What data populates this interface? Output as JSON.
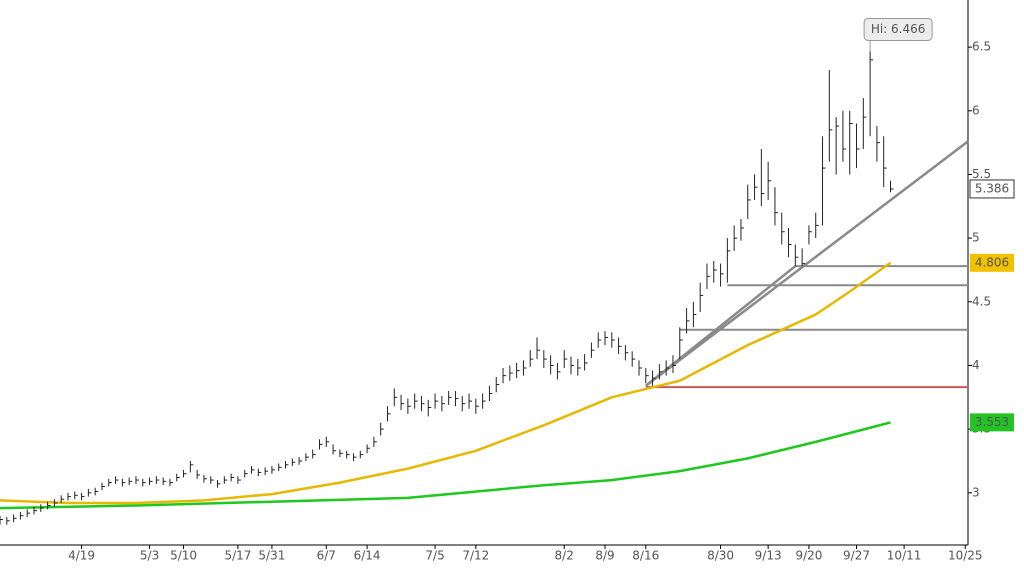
{
  "chart_data": {
    "type": "ohlc",
    "ylim": [
      2.59,
      6.87
    ],
    "yticks": [
      3,
      3.5,
      4,
      4.5,
      5,
      5.5,
      6,
      6.5
    ],
    "xlim": [
      0,
      142.4
    ],
    "xticks": [
      {
        "value": 12,
        "label": "4/19"
      },
      {
        "value": 22,
        "label": "5/3"
      },
      {
        "value": 27,
        "label": "5/10"
      },
      {
        "value": 35,
        "label": "5/17"
      },
      {
        "value": 40,
        "label": "5/31"
      },
      {
        "value": 48,
        "label": "6/7"
      },
      {
        "value": 54,
        "label": "6/14"
      },
      {
        "value": 64,
        "label": "7/5"
      },
      {
        "value": 70,
        "label": "7/12"
      },
      {
        "value": 83,
        "label": "8/2"
      },
      {
        "value": 89,
        "label": "8/9"
      },
      {
        "value": 95,
        "label": "8/16"
      },
      {
        "value": 106,
        "label": "8/30"
      },
      {
        "value": 113,
        "label": "9/13"
      },
      {
        "value": 119,
        "label": "9/20"
      },
      {
        "value": 126,
        "label": "9/27"
      },
      {
        "value": 133,
        "label": "10/11"
      },
      {
        "value": 142,
        "label": "10/25"
      }
    ],
    "bars": {
      "color": "#222222",
      "high": [
        2.82,
        2.81,
        2.83,
        2.85,
        2.87,
        2.89,
        2.91,
        2.93,
        2.95,
        2.98,
        3.0,
        3.01,
        3.0,
        3.03,
        3.04,
        3.08,
        3.11,
        3.13,
        3.11,
        3.12,
        3.13,
        3.11,
        3.12,
        3.13,
        3.12,
        3.11,
        3.15,
        3.18,
        3.25,
        3.18,
        3.14,
        3.13,
        3.1,
        3.13,
        3.15,
        3.13,
        3.18,
        3.21,
        3.19,
        3.2,
        3.21,
        3.23,
        3.25,
        3.27,
        3.28,
        3.31,
        3.34,
        3.42,
        3.44,
        3.38,
        3.34,
        3.33,
        3.31,
        3.33,
        3.38,
        3.44,
        3.55,
        3.68,
        3.82,
        3.77,
        3.74,
        3.78,
        3.76,
        3.73,
        3.78,
        3.76,
        3.8,
        3.8,
        3.76,
        3.78,
        3.74,
        3.78,
        3.84,
        3.91,
        3.98,
        4.0,
        4.02,
        4.04,
        4.12,
        4.22,
        4.12,
        4.08,
        4.02,
        4.12,
        4.07,
        4.05,
        4.09,
        4.18,
        4.26,
        4.27,
        4.26,
        4.22,
        4.16,
        4.11,
        4.04,
        3.98,
        3.96,
        4.01,
        4.04,
        4.08,
        4.3,
        4.45,
        4.5,
        4.65,
        4.8,
        4.82,
        4.8,
        5.0,
        5.1,
        5.15,
        5.42,
        5.5,
        5.7,
        5.6,
        5.4,
        5.2,
        5.08,
        4.95,
        4.92,
        5.1,
        5.2,
        5.8,
        6.32,
        5.95,
        6.0,
        6.0,
        5.9,
        6.1,
        6.466,
        5.88,
        5.8,
        5.45
      ],
      "low": [
        2.75,
        2.75,
        2.77,
        2.79,
        2.81,
        2.83,
        2.85,
        2.87,
        2.89,
        2.92,
        2.94,
        2.95,
        2.94,
        2.97,
        2.98,
        3.02,
        3.05,
        3.07,
        3.05,
        3.06,
        3.07,
        3.05,
        3.06,
        3.07,
        3.06,
        3.05,
        3.09,
        3.12,
        3.16,
        3.11,
        3.08,
        3.07,
        3.04,
        3.07,
        3.09,
        3.07,
        3.12,
        3.15,
        3.13,
        3.14,
        3.15,
        3.17,
        3.19,
        3.21,
        3.22,
        3.25,
        3.27,
        3.34,
        3.36,
        3.3,
        3.28,
        3.27,
        3.25,
        3.27,
        3.31,
        3.36,
        3.45,
        3.56,
        3.68,
        3.65,
        3.62,
        3.66,
        3.64,
        3.6,
        3.66,
        3.64,
        3.69,
        3.68,
        3.64,
        3.66,
        3.62,
        3.66,
        3.72,
        3.79,
        3.86,
        3.88,
        3.9,
        3.92,
        3.99,
        4.05,
        3.98,
        3.93,
        3.89,
        3.98,
        3.93,
        3.92,
        3.96,
        4.06,
        4.14,
        4.16,
        4.14,
        4.09,
        4.04,
        3.99,
        3.92,
        3.86,
        3.84,
        3.89,
        3.92,
        3.94,
        4.05,
        4.25,
        4.3,
        4.42,
        4.6,
        4.65,
        4.62,
        4.65,
        4.9,
        4.98,
        5.15,
        5.3,
        5.25,
        5.3,
        5.1,
        4.95,
        4.85,
        4.78,
        4.78,
        4.95,
        5.0,
        5.1,
        5.6,
        5.5,
        5.6,
        5.5,
        5.55,
        5.7,
        5.8,
        5.6,
        5.4,
        5.36
      ],
      "close": [
        2.79,
        2.78,
        2.8,
        2.82,
        2.84,
        2.86,
        2.88,
        2.9,
        2.92,
        2.95,
        2.97,
        2.98,
        2.97,
        3.0,
        3.01,
        3.05,
        3.08,
        3.1,
        3.08,
        3.09,
        3.1,
        3.08,
        3.09,
        3.1,
        3.09,
        3.08,
        3.12,
        3.15,
        3.22,
        3.14,
        3.11,
        3.1,
        3.07,
        3.1,
        3.12,
        3.1,
        3.15,
        3.18,
        3.16,
        3.17,
        3.18,
        3.2,
        3.22,
        3.24,
        3.25,
        3.28,
        3.3,
        3.38,
        3.4,
        3.33,
        3.31,
        3.3,
        3.28,
        3.3,
        3.35,
        3.4,
        3.5,
        3.62,
        3.75,
        3.7,
        3.68,
        3.72,
        3.7,
        3.67,
        3.72,
        3.7,
        3.75,
        3.74,
        3.7,
        3.72,
        3.68,
        3.72,
        3.78,
        3.85,
        3.92,
        3.94,
        3.96,
        3.98,
        4.05,
        4.12,
        4.05,
        4.0,
        3.95,
        4.05,
        4.0,
        3.98,
        4.02,
        4.12,
        4.2,
        4.22,
        4.2,
        4.15,
        4.1,
        4.05,
        3.98,
        3.92,
        3.9,
        3.95,
        3.98,
        4.0,
        4.2,
        4.35,
        4.4,
        4.55,
        4.7,
        4.75,
        4.72,
        4.9,
        5.0,
        5.08,
        5.3,
        5.4,
        5.35,
        5.45,
        5.2,
        5.05,
        4.95,
        4.85,
        4.8,
        5.05,
        5.1,
        5.55,
        5.85,
        5.88,
        5.7,
        5.9,
        5.7,
        5.95,
        6.4,
        5.75,
        5.55,
        5.386
      ]
    },
    "high_label": "Hi: 6.466",
    "moving_averages": [
      {
        "color": "#e6b800",
        "label_bg": "#f2c200",
        "x": [
          0,
          10,
          20,
          30,
          40,
          50,
          60,
          70,
          80,
          90,
          100,
          110,
          120,
          125,
          131
        ],
        "values": [
          2.94,
          2.92,
          2.92,
          2.94,
          2.99,
          3.08,
          3.19,
          3.33,
          3.53,
          3.75,
          3.88,
          4.16,
          4.4,
          4.58,
          4.806
        ]
      },
      {
        "color": "#1ec81e",
        "label_bg": "#22c322",
        "x": [
          0,
          20,
          40,
          60,
          80,
          90,
          100,
          110,
          120,
          131
        ],
        "values": [
          2.88,
          2.9,
          2.93,
          2.96,
          3.06,
          3.1,
          3.17,
          3.27,
          3.4,
          3.553
        ]
      }
    ],
    "levels": [
      {
        "value": 4.78,
        "from": 117,
        "color": "#8a8a8a"
      },
      {
        "value": 4.63,
        "from": 107,
        "color": "#8a8a8a"
      },
      {
        "value": 4.28,
        "from": 100,
        "color": "#8a8a8a"
      },
      {
        "value": 3.83,
        "from": 95,
        "color": "#c25b5b"
      }
    ],
    "trendlines": [
      {
        "x": [
          95,
          142.4
        ],
        "values": [
          3.84,
          5.76
        ],
        "color": "#8a8a8a"
      },
      {
        "x": [
          95,
          117
        ],
        "values": [
          3.84,
          4.78
        ],
        "color": "#8a8a8a"
      }
    ]
  }
}
